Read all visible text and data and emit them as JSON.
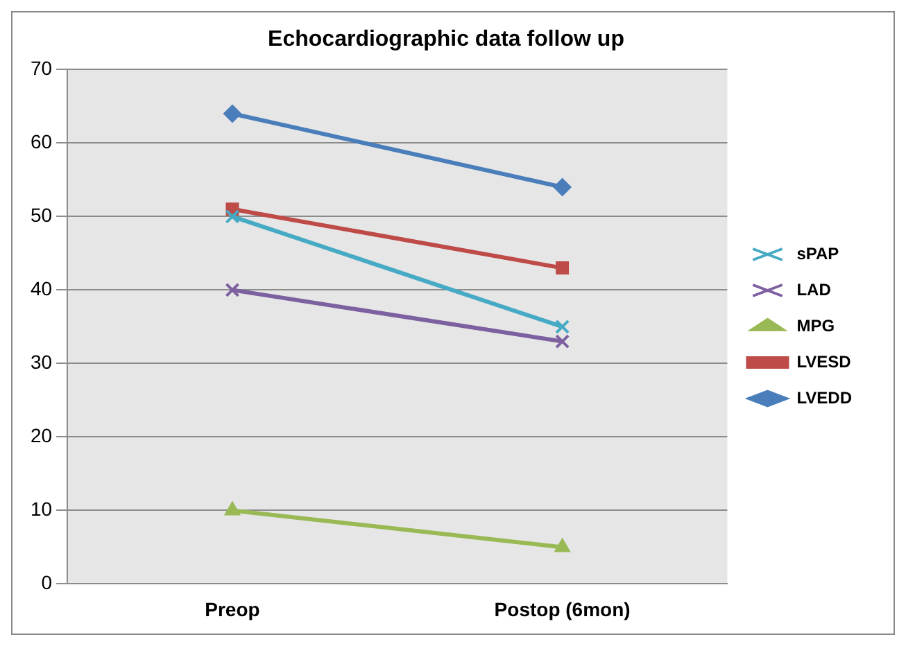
{
  "chart_data": {
    "type": "line",
    "title": "Echocardiographic data follow up",
    "categories": [
      "Preop",
      "Postop (6mon)"
    ],
    "series": [
      {
        "name": "LVEDD",
        "color": "#4a7ebb",
        "marker": "diamond",
        "values": [
          64,
          54
        ]
      },
      {
        "name": "LVESD",
        "color": "#be4b48",
        "marker": "square",
        "values": [
          51,
          43
        ]
      },
      {
        "name": "MPG",
        "color": "#98b954",
        "marker": "triangle",
        "values": [
          10,
          5
        ]
      },
      {
        "name": "LAD",
        "color": "#7d60a0",
        "marker": "cross",
        "values": [
          40,
          33
        ]
      },
      {
        "name": "sPAP",
        "color": "#46aac5",
        "marker": "cross",
        "values": [
          50,
          35
        ]
      }
    ],
    "ylim": [
      0,
      70
    ],
    "yticks": [
      0,
      10,
      20,
      30,
      40,
      50,
      60,
      70
    ],
    "grid": "y",
    "legend": "right",
    "line_style": "solid"
  }
}
